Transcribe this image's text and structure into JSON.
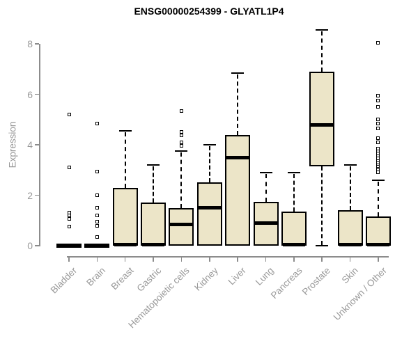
{
  "page": {
    "background": "#FFFFFF"
  },
  "chart_data": {
    "type": "boxplot",
    "title": "ENSG00000254399 - GLYATL1P4",
    "ylabel": "Expression",
    "xlabel": "",
    "ylim": [
      0,
      8.6
    ],
    "yticks": [
      0,
      2,
      4,
      6,
      8
    ],
    "grid": false,
    "legend_position": "none",
    "colors": {
      "box_fill": "#ECE5C8",
      "box_stroke": "#000000",
      "axis": "#8C8C8C",
      "tick_labels": "#999999",
      "title": "#000000"
    },
    "categories": [
      "Bladder",
      "Brain",
      "Breast",
      "Gastric",
      "Hematopoietic cells",
      "Kidney",
      "Liver",
      "Lung",
      "Pancreas",
      "Prostate",
      "Skin",
      "Unknown / Other"
    ],
    "series": [
      {
        "category": "Bladder",
        "low": 0,
        "q1": 0,
        "median": 0,
        "q3": 0,
        "high": 0,
        "outliers": [
          5.2,
          3.1,
          1.3,
          1.2,
          1.05,
          0.75
        ]
      },
      {
        "category": "Brain",
        "low": 0,
        "q1": 0,
        "median": 0,
        "q3": 0,
        "high": 0,
        "outliers": [
          4.85,
          2.95,
          2.0,
          1.5,
          1.2,
          0.95,
          0.8,
          0.35
        ]
      },
      {
        "category": "Breast",
        "low": 0,
        "q1": 0,
        "median": 0.05,
        "q3": 2.3,
        "high": 4.55,
        "outliers": []
      },
      {
        "category": "Gastric",
        "low": 0,
        "q1": 0,
        "median": 0.05,
        "q3": 1.7,
        "high": 3.2,
        "outliers": []
      },
      {
        "category": "Hematopoietic cells",
        "low": 0,
        "q1": 0,
        "median": 0.85,
        "q3": 1.5,
        "high": 3.75,
        "outliers": [
          5.35,
          4.5,
          4.38,
          4.1,
          3.95
        ]
      },
      {
        "category": "Kidney",
        "low": 0,
        "q1": 0,
        "median": 1.5,
        "q3": 2.5,
        "high": 4.0,
        "outliers": []
      },
      {
        "category": "Liver",
        "low": 0,
        "q1": 0,
        "median": 3.5,
        "q3": 4.4,
        "high": 6.85,
        "outliers": []
      },
      {
        "category": "Lung",
        "low": 0,
        "q1": 0,
        "median": 0.9,
        "q3": 1.75,
        "high": 2.9,
        "outliers": []
      },
      {
        "category": "Pancreas",
        "low": 0,
        "q1": 0,
        "median": 0.05,
        "q3": 1.35,
        "high": 2.9,
        "outliers": []
      },
      {
        "category": "Prostate",
        "low": 0,
        "q1": 3.15,
        "median": 4.8,
        "q3": 6.9,
        "high": 8.55,
        "outliers": []
      },
      {
        "category": "Skin",
        "low": 0,
        "q1": 0,
        "median": 0.05,
        "q3": 1.4,
        "high": 3.2,
        "outliers": []
      },
      {
        "category": "Unknown / Other",
        "low": 0,
        "q1": 0,
        "median": 0.05,
        "q3": 1.15,
        "high": 2.6,
        "outliers": [
          8.05,
          5.95,
          5.75,
          5.5,
          5.0,
          4.85,
          4.65,
          4.25,
          4.1,
          3.85,
          3.75,
          3.65,
          3.55,
          3.45,
          3.35,
          3.28,
          3.2,
          3.12,
          3.05,
          2.98,
          2.9
        ]
      }
    ]
  }
}
